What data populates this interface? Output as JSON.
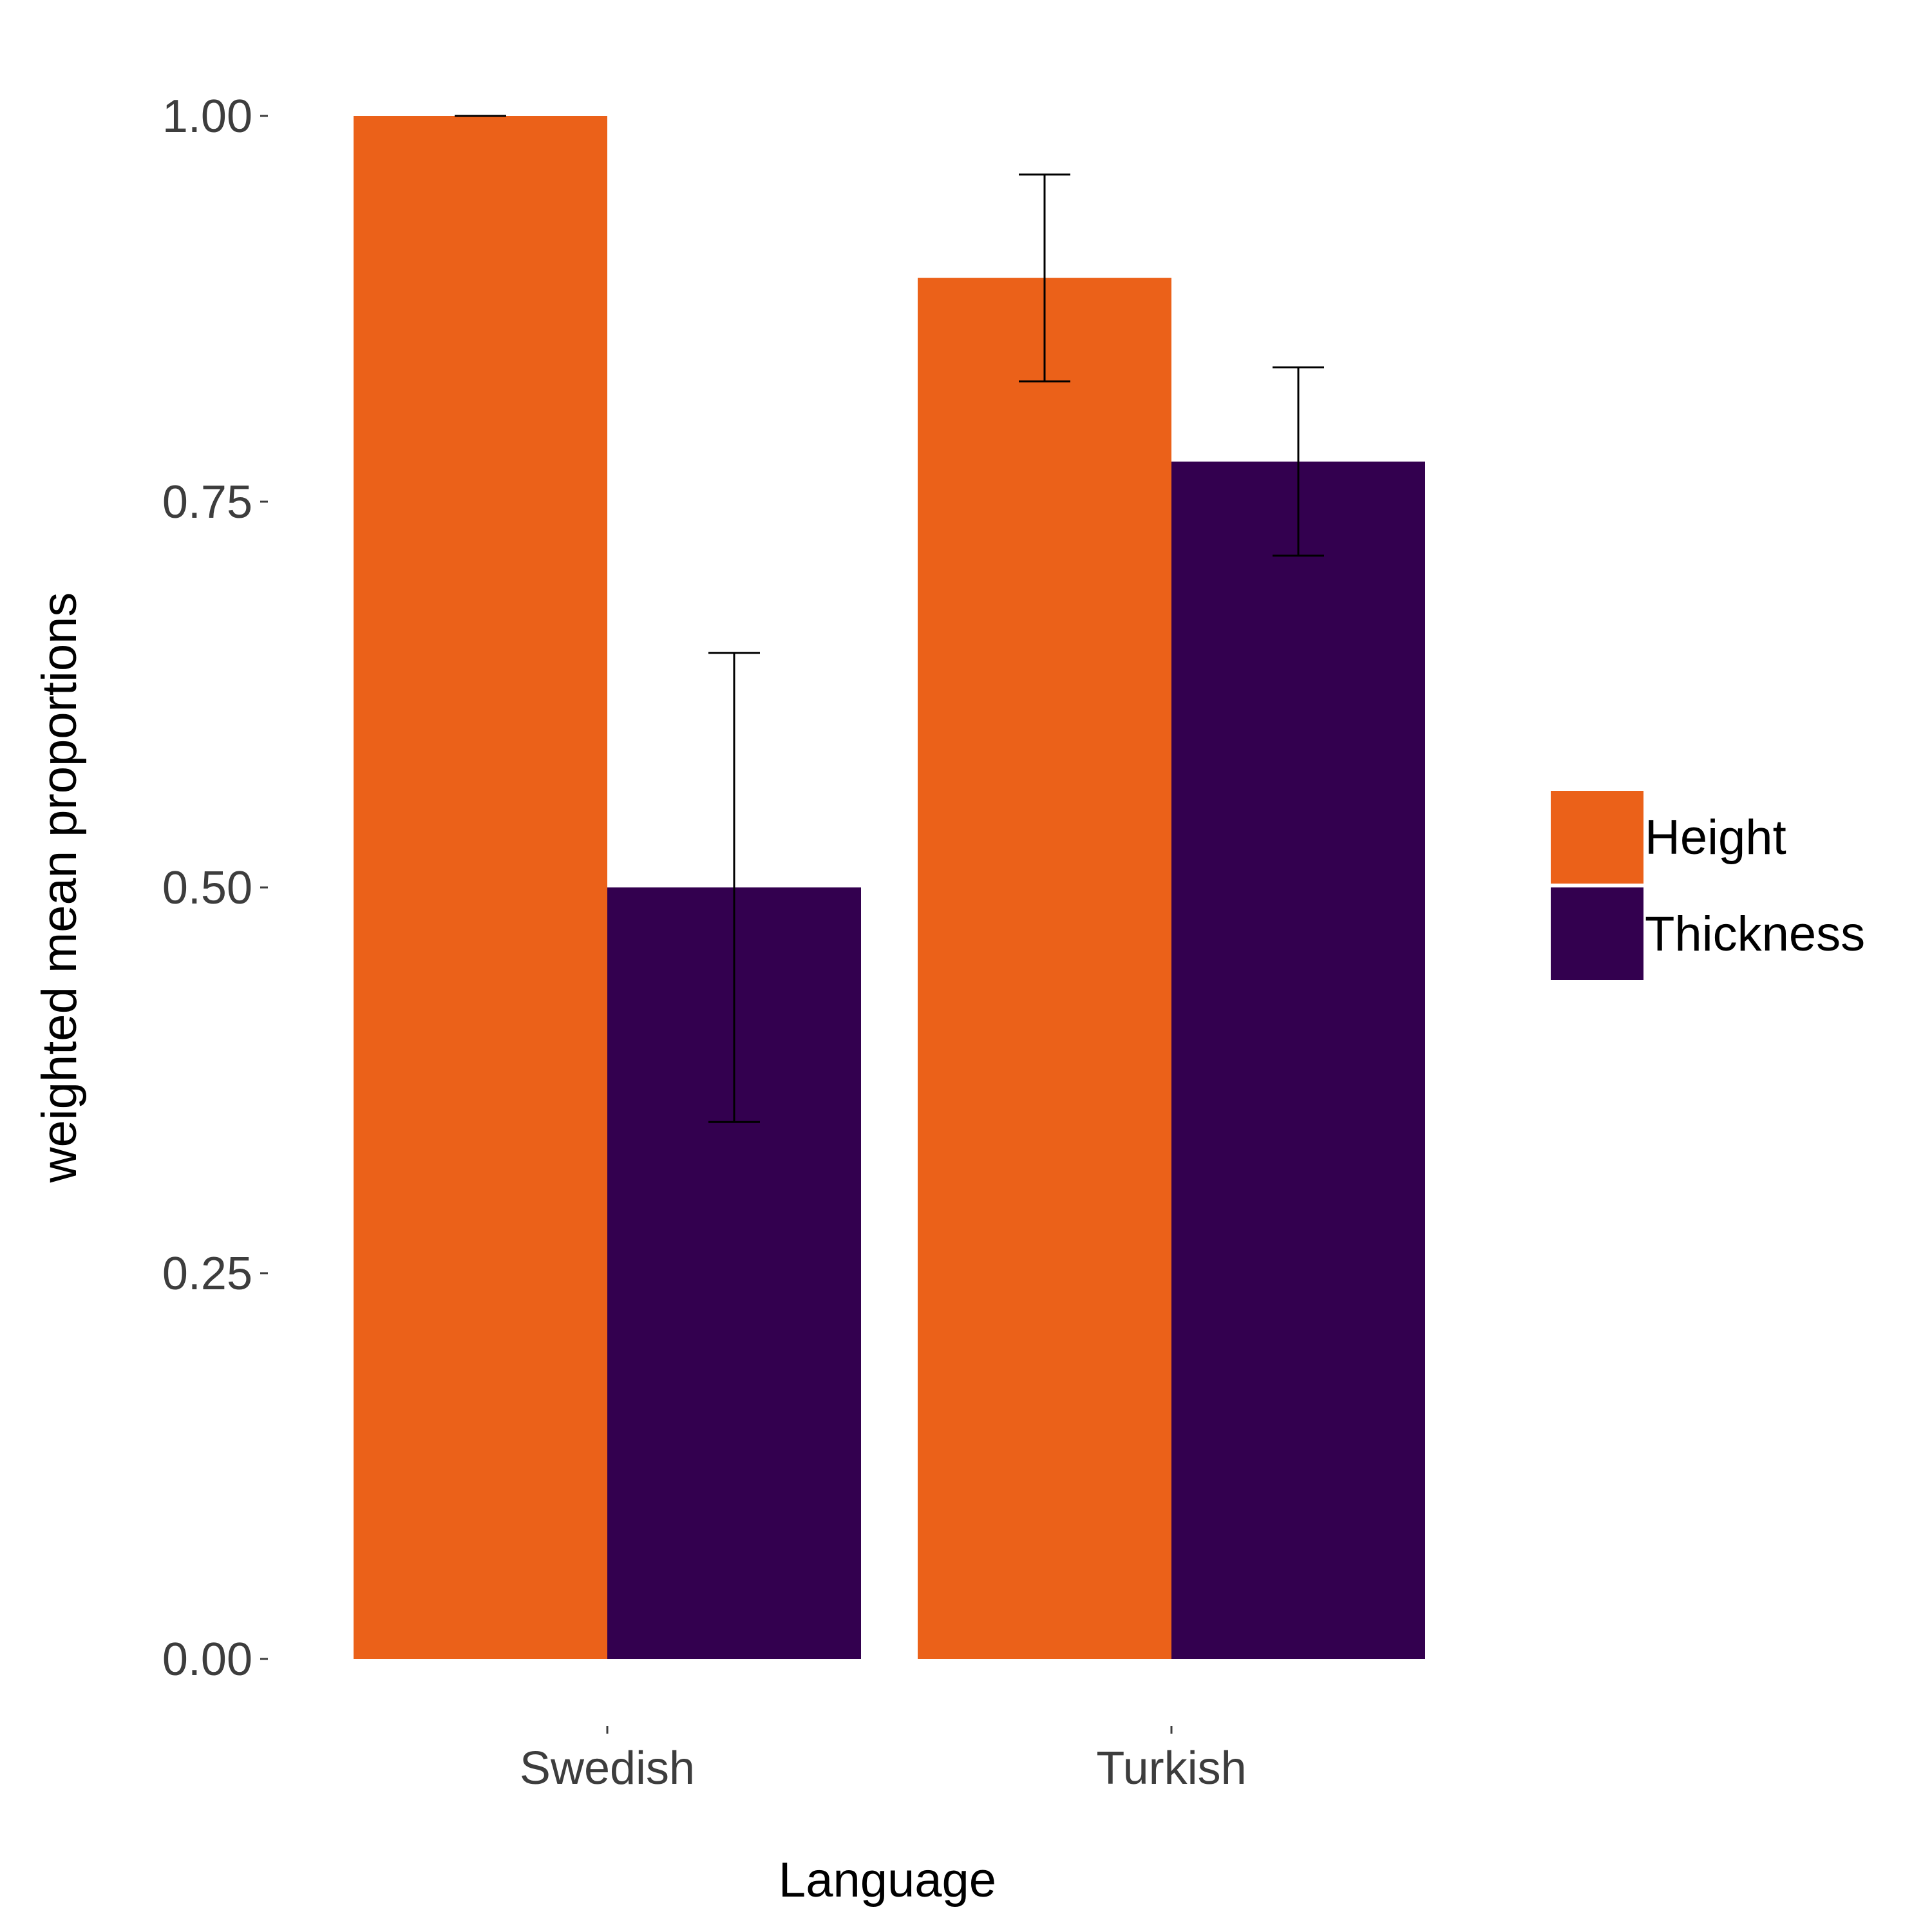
{
  "chart_data": {
    "type": "bar",
    "categories": [
      "Swedish",
      "Turkish"
    ],
    "series": [
      {
        "name": "Height",
        "color": "#EB6119",
        "values": [
          1.0,
          0.895
        ],
        "error_low": [
          1.0,
          0.828
        ],
        "error_high": [
          1.0,
          0.962
        ]
      },
      {
        "name": "Thickness",
        "color": "#33004F",
        "values": [
          0.5,
          0.776
        ],
        "error_low": [
          0.348,
          0.715
        ],
        "error_high": [
          0.652,
          0.837
        ]
      }
    ],
    "xlabel": "Language",
    "ylabel": "weighted mean proportions",
    "ylim": [
      0,
      1
    ],
    "yticks": [
      0.0,
      0.25,
      0.5,
      0.75,
      1.0
    ],
    "ytick_labels": [
      "0.00",
      "0.25",
      "0.50",
      "0.75",
      "1.00"
    ],
    "grid": false,
    "legend_position": "right"
  }
}
